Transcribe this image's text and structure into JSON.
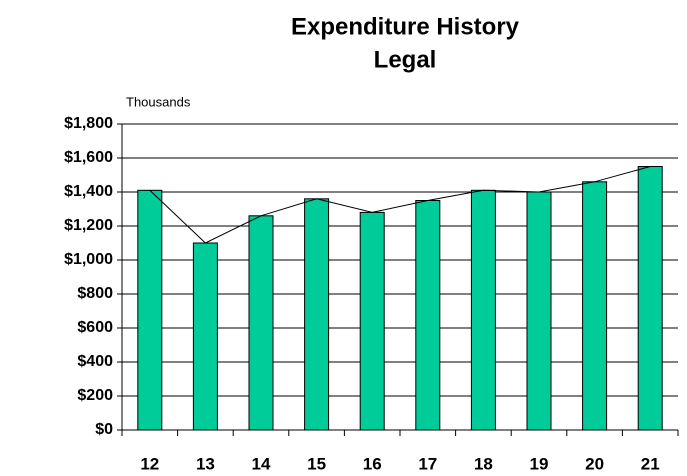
{
  "chart_data": {
    "type": "bar",
    "title": [
      "Expenditure History",
      "Legal"
    ],
    "y_unit_label": "Thousands",
    "categories": [
      "12",
      "13",
      "14",
      "15",
      "16",
      "17",
      "18",
      "19",
      "20",
      "21"
    ],
    "values": [
      1410,
      1100,
      1260,
      1360,
      1280,
      1350,
      1410,
      1400,
      1460,
      1550
    ],
    "color": "#00cc99",
    "line_overlay": true,
    "line_color": "#000000",
    "ylim": [
      0,
      1800
    ],
    "yticks": [
      {
        "value": 0,
        "label": "$0"
      },
      {
        "value": 200,
        "label": "$200"
      },
      {
        "value": 400,
        "label": "$400"
      },
      {
        "value": 600,
        "label": "$600"
      },
      {
        "value": 800,
        "label": "$800"
      },
      {
        "value": 1000,
        "label": "$1,000"
      },
      {
        "value": 1200,
        "label": "$1,200"
      },
      {
        "value": 1400,
        "label": "$1,400"
      },
      {
        "value": 1600,
        "label": "$1,600"
      },
      {
        "value": 1800,
        "label": "$1,800"
      }
    ],
    "grid": true
  }
}
